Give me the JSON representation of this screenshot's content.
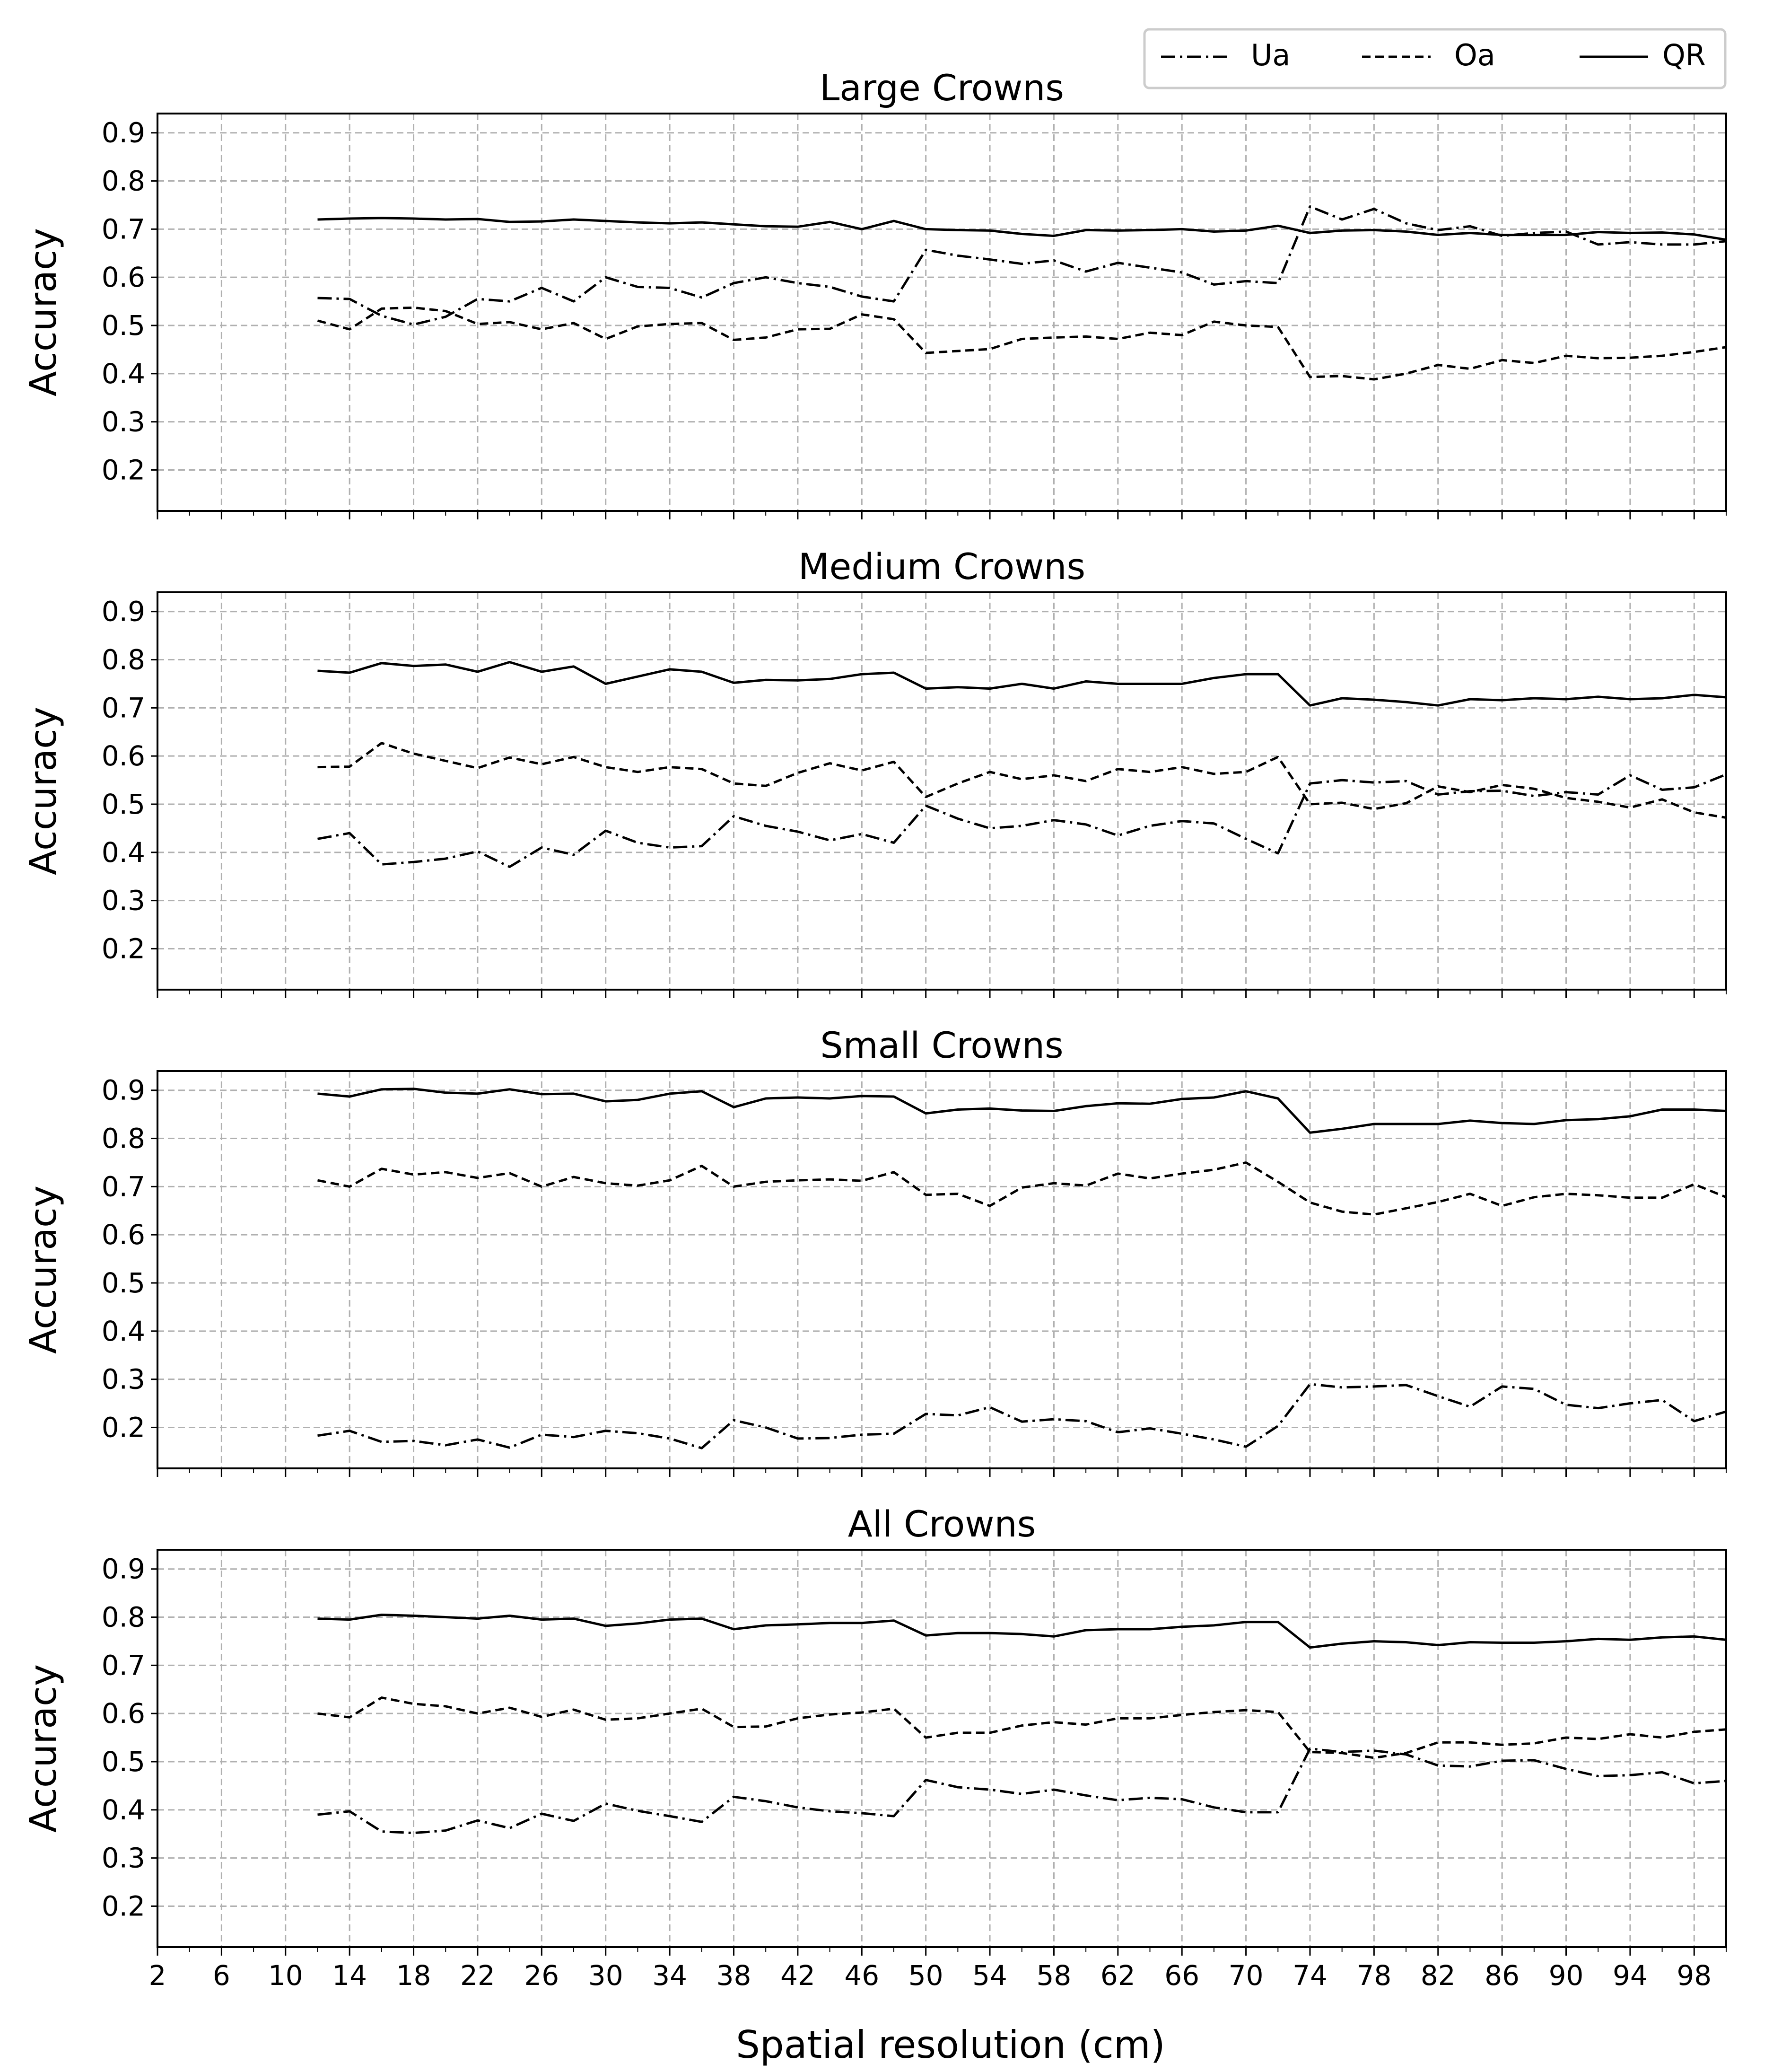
{
  "figure": {
    "xlabel": "Spatial resolution (cm)",
    "ylabel": "Accuracy",
    "legend": {
      "placement": "top-right",
      "entries": [
        {
          "key": "Ua",
          "label": "Ua",
          "style": "dashdot"
        },
        {
          "key": "Oa",
          "label": "Oa",
          "style": "dashed"
        },
        {
          "key": "QR",
          "label": "QR",
          "style": "solid"
        }
      ]
    },
    "xticks": [
      2,
      6,
      10,
      14,
      18,
      22,
      26,
      30,
      34,
      38,
      42,
      46,
      50,
      54,
      58,
      62,
      66,
      70,
      74,
      78,
      82,
      86,
      90,
      94,
      98
    ],
    "xlim": [
      2,
      100
    ],
    "yticks": [
      0.2,
      0.3,
      0.4,
      0.5,
      0.6,
      0.7,
      0.8,
      0.9
    ],
    "ylim": [
      0.115,
      0.94
    ],
    "grid": true,
    "line_color": "#000000",
    "grid_color": "#b0b0b0"
  },
  "chart_data": [
    {
      "type": "line",
      "title": "Large Crowns",
      "xlabel": "",
      "ylabel": "Accuracy",
      "x": [
        12,
        14,
        16,
        18,
        20,
        22,
        24,
        26,
        28,
        30,
        32,
        34,
        36,
        38,
        40,
        42,
        44,
        46,
        48,
        50,
        52,
        54,
        56,
        58,
        60,
        62,
        64,
        66,
        68,
        70,
        72,
        74,
        76,
        78,
        80,
        82,
        84,
        86,
        88,
        90,
        92,
        94,
        96,
        98,
        100
      ],
      "series": [
        {
          "name": "Ua",
          "values": [
            0.557,
            0.555,
            0.52,
            0.502,
            0.518,
            0.555,
            0.55,
            0.578,
            0.55,
            0.6,
            0.58,
            0.578,
            0.558,
            0.588,
            0.6,
            0.588,
            0.58,
            0.56,
            0.55,
            0.657,
            0.645,
            0.637,
            0.628,
            0.635,
            0.612,
            0.63,
            0.62,
            0.61,
            0.585,
            0.592,
            0.588,
            0.747,
            0.72,
            0.742,
            0.712,
            0.698,
            0.706,
            0.686,
            0.692,
            0.695,
            0.668,
            0.673,
            0.668,
            0.668,
            0.675
          ]
        },
        {
          "name": "Oa",
          "values": [
            0.51,
            0.492,
            0.535,
            0.537,
            0.53,
            0.503,
            0.507,
            0.492,
            0.505,
            0.472,
            0.498,
            0.503,
            0.505,
            0.47,
            0.475,
            0.492,
            0.493,
            0.523,
            0.513,
            0.443,
            0.447,
            0.451,
            0.472,
            0.475,
            0.477,
            0.472,
            0.485,
            0.48,
            0.508,
            0.5,
            0.497,
            0.393,
            0.395,
            0.388,
            0.4,
            0.418,
            0.41,
            0.428,
            0.422,
            0.437,
            0.432,
            0.433,
            0.437,
            0.445,
            0.455
          ]
        },
        {
          "name": "QR",
          "values": [
            0.72,
            0.722,
            0.723,
            0.722,
            0.72,
            0.721,
            0.715,
            0.716,
            0.72,
            0.717,
            0.714,
            0.712,
            0.714,
            0.71,
            0.706,
            0.705,
            0.715,
            0.7,
            0.717,
            0.7,
            0.698,
            0.697,
            0.69,
            0.686,
            0.698,
            0.697,
            0.698,
            0.7,
            0.695,
            0.697,
            0.707,
            0.692,
            0.697,
            0.698,
            0.695,
            0.688,
            0.692,
            0.688,
            0.688,
            0.688,
            0.694,
            0.692,
            0.693,
            0.689,
            0.678
          ]
        }
      ]
    },
    {
      "type": "line",
      "title": "Medium Crowns",
      "xlabel": "",
      "ylabel": "Accuracy",
      "x": [
        12,
        14,
        16,
        18,
        20,
        22,
        24,
        26,
        28,
        30,
        32,
        34,
        36,
        38,
        40,
        42,
        44,
        46,
        48,
        50,
        52,
        54,
        56,
        58,
        60,
        62,
        64,
        66,
        68,
        70,
        72,
        74,
        76,
        78,
        80,
        82,
        84,
        86,
        88,
        90,
        92,
        94,
        96,
        98,
        100
      ],
      "series": [
        {
          "name": "Ua",
          "values": [
            0.428,
            0.44,
            0.375,
            0.38,
            0.387,
            0.402,
            0.37,
            0.41,
            0.395,
            0.445,
            0.42,
            0.41,
            0.413,
            0.475,
            0.455,
            0.443,
            0.425,
            0.438,
            0.42,
            0.497,
            0.47,
            0.45,
            0.455,
            0.467,
            0.458,
            0.435,
            0.455,
            0.465,
            0.46,
            0.428,
            0.398,
            0.543,
            0.55,
            0.545,
            0.548,
            0.52,
            0.527,
            0.528,
            0.517,
            0.525,
            0.52,
            0.56,
            0.53,
            0.535,
            0.562
          ]
        },
        {
          "name": "Oa",
          "values": [
            0.577,
            0.578,
            0.627,
            0.605,
            0.59,
            0.575,
            0.597,
            0.583,
            0.598,
            0.577,
            0.567,
            0.577,
            0.573,
            0.543,
            0.538,
            0.565,
            0.585,
            0.57,
            0.588,
            0.515,
            0.543,
            0.567,
            0.552,
            0.56,
            0.548,
            0.573,
            0.567,
            0.577,
            0.563,
            0.567,
            0.598,
            0.5,
            0.503,
            0.49,
            0.502,
            0.537,
            0.525,
            0.54,
            0.532,
            0.513,
            0.505,
            0.493,
            0.51,
            0.483,
            0.472
          ]
        },
        {
          "name": "QR",
          "values": [
            0.777,
            0.773,
            0.793,
            0.787,
            0.79,
            0.775,
            0.795,
            0.775,
            0.786,
            0.75,
            0.765,
            0.78,
            0.775,
            0.752,
            0.758,
            0.757,
            0.76,
            0.77,
            0.773,
            0.74,
            0.743,
            0.74,
            0.75,
            0.74,
            0.755,
            0.75,
            0.75,
            0.75,
            0.762,
            0.77,
            0.77,
            0.705,
            0.72,
            0.717,
            0.712,
            0.705,
            0.718,
            0.716,
            0.72,
            0.718,
            0.723,
            0.718,
            0.72,
            0.727,
            0.722
          ]
        }
      ]
    },
    {
      "type": "line",
      "title": "Small Crowns",
      "xlabel": "",
      "ylabel": "Accuracy",
      "x": [
        12,
        14,
        16,
        18,
        20,
        22,
        24,
        26,
        28,
        30,
        32,
        34,
        36,
        38,
        40,
        42,
        44,
        46,
        48,
        50,
        52,
        54,
        56,
        58,
        60,
        62,
        64,
        66,
        68,
        70,
        72,
        74,
        76,
        78,
        80,
        82,
        84,
        86,
        88,
        90,
        92,
        94,
        96,
        98,
        100
      ],
      "series": [
        {
          "name": "Ua",
          "values": [
            0.183,
            0.193,
            0.17,
            0.172,
            0.163,
            0.175,
            0.158,
            0.185,
            0.18,
            0.193,
            0.188,
            0.177,
            0.157,
            0.215,
            0.2,
            0.177,
            0.178,
            0.185,
            0.187,
            0.228,
            0.225,
            0.242,
            0.212,
            0.217,
            0.213,
            0.19,
            0.198,
            0.187,
            0.175,
            0.16,
            0.203,
            0.29,
            0.283,
            0.285,
            0.288,
            0.265,
            0.243,
            0.285,
            0.28,
            0.247,
            0.24,
            0.25,
            0.257,
            0.213,
            0.233
          ]
        },
        {
          "name": "Oa",
          "values": [
            0.713,
            0.7,
            0.737,
            0.725,
            0.73,
            0.718,
            0.728,
            0.7,
            0.72,
            0.707,
            0.702,
            0.713,
            0.743,
            0.7,
            0.71,
            0.713,
            0.715,
            0.712,
            0.73,
            0.683,
            0.685,
            0.66,
            0.698,
            0.707,
            0.702,
            0.727,
            0.717,
            0.727,
            0.735,
            0.75,
            0.71,
            0.667,
            0.648,
            0.642,
            0.655,
            0.668,
            0.685,
            0.66,
            0.678,
            0.685,
            0.682,
            0.677,
            0.677,
            0.705,
            0.678
          ]
        },
        {
          "name": "QR",
          "values": [
            0.893,
            0.887,
            0.902,
            0.903,
            0.895,
            0.893,
            0.902,
            0.892,
            0.893,
            0.877,
            0.88,
            0.893,
            0.898,
            0.865,
            0.883,
            0.885,
            0.883,
            0.888,
            0.887,
            0.852,
            0.86,
            0.862,
            0.858,
            0.857,
            0.867,
            0.873,
            0.872,
            0.882,
            0.885,
            0.898,
            0.883,
            0.812,
            0.82,
            0.83,
            0.83,
            0.83,
            0.837,
            0.832,
            0.83,
            0.838,
            0.84,
            0.846,
            0.86,
            0.86,
            0.857
          ]
        }
      ]
    },
    {
      "type": "line",
      "title": "All Crowns",
      "xlabel": "Spatial resolution (cm)",
      "ylabel": "Accuracy",
      "x": [
        12,
        14,
        16,
        18,
        20,
        22,
        24,
        26,
        28,
        30,
        32,
        34,
        36,
        38,
        40,
        42,
        44,
        46,
        48,
        50,
        52,
        54,
        56,
        58,
        60,
        62,
        64,
        66,
        68,
        70,
        72,
        74,
        76,
        78,
        80,
        82,
        84,
        86,
        88,
        90,
        92,
        94,
        96,
        98,
        100
      ],
      "series": [
        {
          "name": "Ua",
          "values": [
            0.39,
            0.397,
            0.355,
            0.352,
            0.357,
            0.378,
            0.362,
            0.392,
            0.377,
            0.413,
            0.398,
            0.387,
            0.375,
            0.427,
            0.418,
            0.405,
            0.397,
            0.393,
            0.387,
            0.462,
            0.447,
            0.442,
            0.433,
            0.442,
            0.43,
            0.42,
            0.425,
            0.422,
            0.405,
            0.395,
            0.395,
            0.527,
            0.52,
            0.523,
            0.515,
            0.492,
            0.49,
            0.502,
            0.503,
            0.485,
            0.47,
            0.472,
            0.478,
            0.455,
            0.46
          ]
        },
        {
          "name": "Oa",
          "values": [
            0.6,
            0.592,
            0.633,
            0.62,
            0.615,
            0.6,
            0.612,
            0.593,
            0.608,
            0.587,
            0.59,
            0.6,
            0.61,
            0.572,
            0.573,
            0.59,
            0.598,
            0.602,
            0.61,
            0.55,
            0.56,
            0.56,
            0.575,
            0.582,
            0.577,
            0.59,
            0.59,
            0.597,
            0.603,
            0.607,
            0.603,
            0.52,
            0.518,
            0.508,
            0.518,
            0.54,
            0.54,
            0.535,
            0.538,
            0.55,
            0.547,
            0.557,
            0.55,
            0.562,
            0.567
          ]
        },
        {
          "name": "QR",
          "values": [
            0.797,
            0.795,
            0.805,
            0.803,
            0.8,
            0.797,
            0.803,
            0.795,
            0.797,
            0.782,
            0.787,
            0.795,
            0.797,
            0.775,
            0.783,
            0.785,
            0.788,
            0.788,
            0.793,
            0.762,
            0.767,
            0.767,
            0.765,
            0.76,
            0.773,
            0.775,
            0.775,
            0.78,
            0.783,
            0.79,
            0.79,
            0.737,
            0.745,
            0.75,
            0.748,
            0.742,
            0.748,
            0.747,
            0.747,
            0.75,
            0.755,
            0.753,
            0.758,
            0.76,
            0.753
          ]
        }
      ]
    }
  ]
}
